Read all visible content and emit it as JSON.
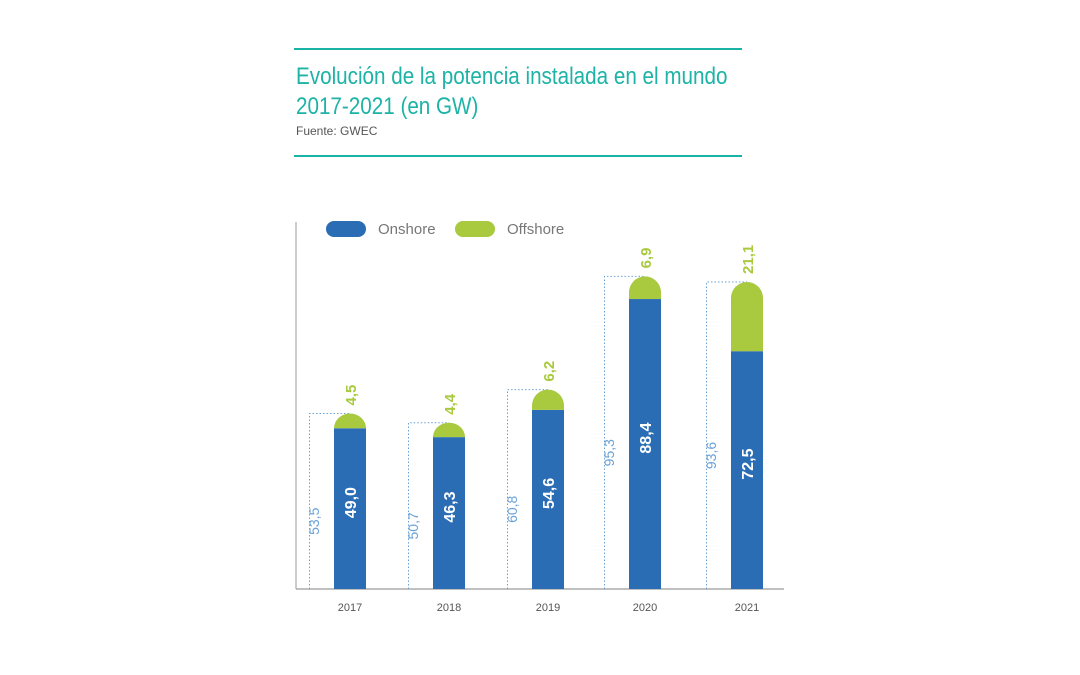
{
  "header": {
    "title_line1": "Evolución de la potencia instalada en el mundo",
    "title_line2": "2017-2021 (en GW)",
    "source": "Fuente: GWEC"
  },
  "colors": {
    "accent": "#1db3a6",
    "onshore": "#2a6db5",
    "offshore": "#a9c93e",
    "total_outline": "#6aa2d6"
  },
  "chart_data": {
    "type": "bar",
    "stacked": true,
    "categories": [
      "2017",
      "2018",
      "2019",
      "2020",
      "2021"
    ],
    "series": [
      {
        "name": "Onshore",
        "values": [
          49.0,
          46.3,
          54.6,
          88.4,
          72.5
        ],
        "labels": [
          "49,0",
          "46,3",
          "54,6",
          "88,4",
          "72,5"
        ]
      },
      {
        "name": "Offshore",
        "values": [
          4.5,
          4.4,
          6.2,
          6.9,
          21.1
        ],
        "labels": [
          "4,5",
          "4,4",
          "6,2",
          "6,9",
          "21,1"
        ]
      }
    ],
    "totals": {
      "values": [
        53.5,
        50.7,
        60.8,
        95.3,
        93.6
      ],
      "labels": [
        "53,5",
        "50,7",
        "60,8",
        "95,3",
        "93,6"
      ]
    },
    "legend": {
      "position": "top-left",
      "items": [
        "Onshore",
        "Offshore"
      ]
    },
    "ylim": [
      0,
      100
    ],
    "grid": false
  }
}
